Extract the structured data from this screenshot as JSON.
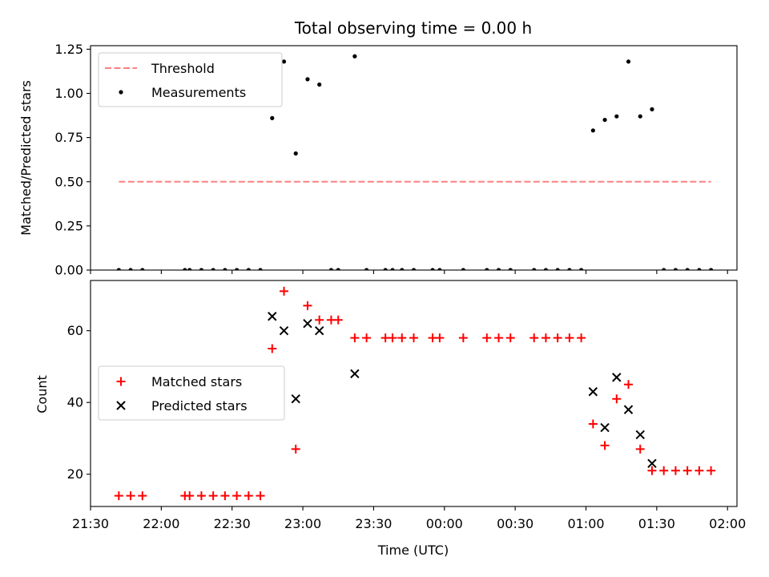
{
  "chart_data": [
    {
      "type": "scatter",
      "title": "Total observing time = 0.00 h",
      "xlabel": "",
      "ylabel": "Matched/Predicted stars",
      "x_domain": [
        "21:30",
        "02:04"
      ],
      "ylim": [
        0,
        1.27
      ],
      "yticks": [
        0.0,
        0.25,
        0.5,
        0.75,
        1.0,
        1.25
      ],
      "ytick_labels": [
        "0.00",
        "0.25",
        "0.50",
        "0.75",
        "1.00",
        "1.25"
      ],
      "grid": false,
      "legend_position": "top-left",
      "series": [
        {
          "name": "Threshold",
          "style": "dashed-line",
          "color": "#ff8080",
          "points": [
            [
              "21:42",
              0.5
            ],
            [
              "01:53",
              0.5
            ]
          ]
        },
        {
          "name": "Measurements",
          "style": "dot",
          "color": "#000000",
          "points": [
            [
              "21:42",
              0
            ],
            [
              "21:47",
              0
            ],
            [
              "21:52",
              0
            ],
            [
              "22:10",
              0
            ],
            [
              "22:12",
              0
            ],
            [
              "22:17",
              0
            ],
            [
              "22:22",
              0
            ],
            [
              "22:27",
              0
            ],
            [
              "22:32",
              0
            ],
            [
              "22:37",
              0
            ],
            [
              "22:42",
              0
            ],
            [
              "22:47",
              0.86
            ],
            [
              "22:52",
              1.18
            ],
            [
              "22:57",
              0.66
            ],
            [
              "23:02",
              1.08
            ],
            [
              "23:07",
              1.05
            ],
            [
              "23:12",
              0
            ],
            [
              "23:15",
              0
            ],
            [
              "23:22",
              1.21
            ],
            [
              "23:27",
              0
            ],
            [
              "23:35",
              0
            ],
            [
              "23:38",
              0
            ],
            [
              "23:42",
              0
            ],
            [
              "23:47",
              0
            ],
            [
              "23:55",
              0
            ],
            [
              "23:58",
              0
            ],
            [
              "00:08",
              0
            ],
            [
              "00:18",
              0
            ],
            [
              "00:23",
              0
            ],
            [
              "00:28",
              0
            ],
            [
              "00:38",
              0
            ],
            [
              "00:43",
              0
            ],
            [
              "00:48",
              0
            ],
            [
              "00:53",
              0
            ],
            [
              "00:58",
              0
            ],
            [
              "01:03",
              0.79
            ],
            [
              "01:08",
              0.85
            ],
            [
              "01:13",
              0.87
            ],
            [
              "01:18",
              1.18
            ],
            [
              "01:23",
              0.87
            ],
            [
              "01:28",
              0.91
            ],
            [
              "01:33",
              0
            ],
            [
              "01:38",
              0
            ],
            [
              "01:43",
              0
            ],
            [
              "01:48",
              0
            ],
            [
              "01:53",
              0
            ]
          ]
        }
      ]
    },
    {
      "type": "scatter",
      "title": "",
      "xlabel": "Time (UTC)",
      "ylabel": "Count",
      "x_domain": [
        "21:30",
        "02:04"
      ],
      "xticks": [
        "21:30",
        "22:00",
        "22:30",
        "23:00",
        "23:30",
        "00:00",
        "00:30",
        "01:00",
        "01:30",
        "02:00"
      ],
      "ylim": [
        11,
        74
      ],
      "yticks": [
        20,
        40,
        60
      ],
      "ytick_labels": [
        "20",
        "40",
        "60"
      ],
      "grid": false,
      "legend_position": "center-left",
      "series": [
        {
          "name": "Matched stars",
          "style": "plus",
          "color": "#ff0000",
          "points": [
            [
              "21:42",
              14
            ],
            [
              "21:47",
              14
            ],
            [
              "21:52",
              14
            ],
            [
              "22:10",
              14
            ],
            [
              "22:12",
              14
            ],
            [
              "22:17",
              14
            ],
            [
              "22:22",
              14
            ],
            [
              "22:27",
              14
            ],
            [
              "22:32",
              14
            ],
            [
              "22:37",
              14
            ],
            [
              "22:42",
              14
            ],
            [
              "22:47",
              55
            ],
            [
              "22:52",
              71
            ],
            [
              "22:57",
              27
            ],
            [
              "23:02",
              67
            ],
            [
              "23:07",
              63
            ],
            [
              "23:12",
              63
            ],
            [
              "23:15",
              63
            ],
            [
              "23:22",
              58
            ],
            [
              "23:27",
              58
            ],
            [
              "23:35",
              58
            ],
            [
              "23:38",
              58
            ],
            [
              "23:42",
              58
            ],
            [
              "23:47",
              58
            ],
            [
              "23:55",
              58
            ],
            [
              "23:58",
              58
            ],
            [
              "00:08",
              58
            ],
            [
              "00:18",
              58
            ],
            [
              "00:23",
              58
            ],
            [
              "00:28",
              58
            ],
            [
              "00:38",
              58
            ],
            [
              "00:43",
              58
            ],
            [
              "00:48",
              58
            ],
            [
              "00:53",
              58
            ],
            [
              "00:58",
              58
            ],
            [
              "01:03",
              34
            ],
            [
              "01:08",
              28
            ],
            [
              "01:13",
              41
            ],
            [
              "01:18",
              45
            ],
            [
              "01:23",
              27
            ],
            [
              "01:28",
              21
            ],
            [
              "01:33",
              21
            ],
            [
              "01:38",
              21
            ],
            [
              "01:43",
              21
            ],
            [
              "01:48",
              21
            ],
            [
              "01:53",
              21
            ]
          ]
        },
        {
          "name": "Predicted stars",
          "style": "x",
          "color": "#000000",
          "points": [
            [
              "22:47",
              64
            ],
            [
              "22:52",
              60
            ],
            [
              "22:57",
              41
            ],
            [
              "23:02",
              62
            ],
            [
              "23:07",
              60
            ],
            [
              "23:22",
              48
            ],
            [
              "01:03",
              43
            ],
            [
              "01:08",
              33
            ],
            [
              "01:13",
              47
            ],
            [
              "01:18",
              38
            ],
            [
              "01:23",
              31
            ],
            [
              "01:28",
              23
            ]
          ]
        }
      ]
    }
  ]
}
